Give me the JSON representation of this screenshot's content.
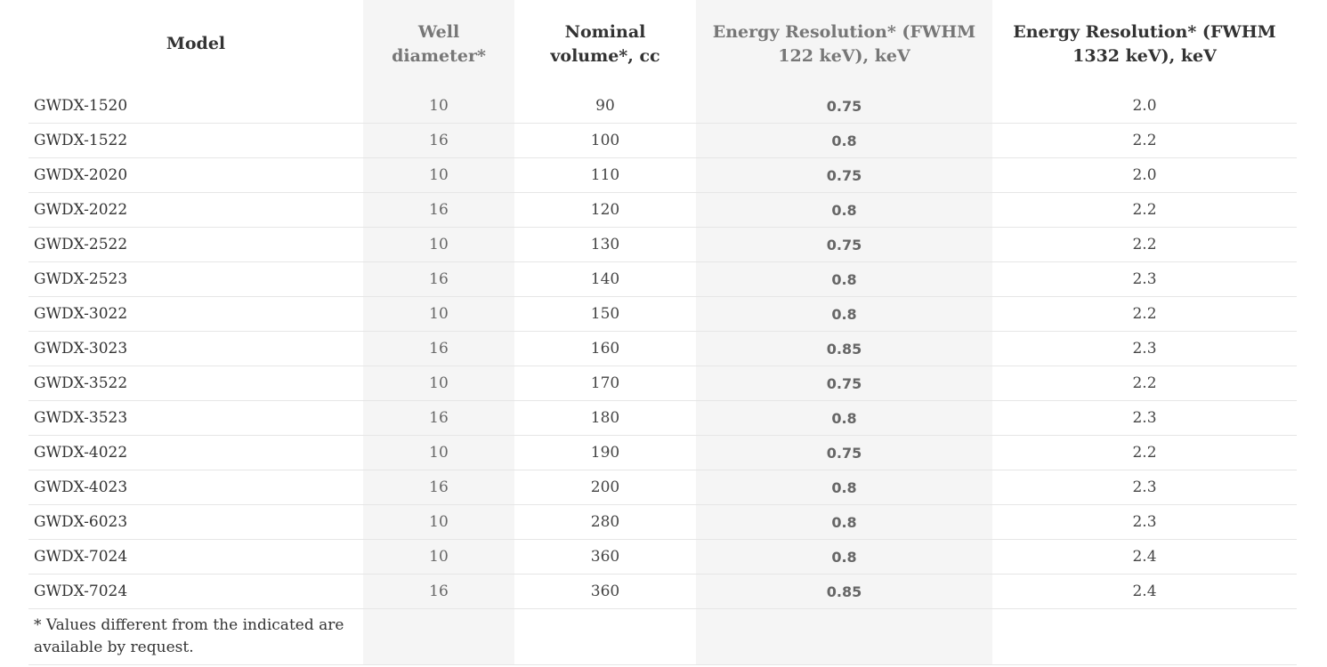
{
  "headers": {
    "model": "Model",
    "well": "Well diameter*",
    "volume": "Nominal volume*, cc",
    "e122": "Energy Resolution* (FWHM 122 keV), keV",
    "e1332": "Energy Resolution* (FWHM 1332 keV), keV"
  },
  "rows": [
    {
      "model": "GWDX-1520",
      "well": "10",
      "volume": "90",
      "e122": "0.75",
      "e1332": "2.0"
    },
    {
      "model": "GWDX-1522",
      "well": "16",
      "volume": "100",
      "e122": "0.8",
      "e1332": "2.2"
    },
    {
      "model": "GWDX-2020",
      "well": "10",
      "volume": "110",
      "e122": "0.75",
      "e1332": "2.0"
    },
    {
      "model": "GWDX-2022",
      "well": "16",
      "volume": "120",
      "e122": "0.8",
      "e1332": "2.2"
    },
    {
      "model": "GWDX-2522",
      "well": "10",
      "volume": "130",
      "e122": "0.75",
      "e1332": "2.2"
    },
    {
      "model": "GWDX-2523",
      "well": "16",
      "volume": "140",
      "e122": "0.8",
      "e1332": "2.3"
    },
    {
      "model": "GWDX-3022",
      "well": "10",
      "volume": "150",
      "e122": "0.8",
      "e1332": "2.2"
    },
    {
      "model": "GWDX-3023",
      "well": "16",
      "volume": "160",
      "e122": "0.85",
      "e1332": "2.3"
    },
    {
      "model": "GWDX-3522",
      "well": "10",
      "volume": "170",
      "e122": "0.75",
      "e1332": "2.2"
    },
    {
      "model": "GWDX-3523",
      "well": "16",
      "volume": "180",
      "e122": "0.8",
      "e1332": "2.3"
    },
    {
      "model": "GWDX-4022",
      "well": "10",
      "volume": "190",
      "e122": "0.75",
      "e1332": "2.2"
    },
    {
      "model": "GWDX-4023",
      "well": "16",
      "volume": "200",
      "e122": "0.8",
      "e1332": "2.3"
    },
    {
      "model": "GWDX-6023",
      "well": "10",
      "volume": "280",
      "e122": "0.8",
      "e1332": "2.3"
    },
    {
      "model": "GWDX-7024",
      "well": "10",
      "volume": "360",
      "e122": "0.8",
      "e1332": "2.4"
    },
    {
      "model": "GWDX-7024",
      "well": "16",
      "volume": "360",
      "e122": "0.85",
      "e1332": "2.4"
    }
  ],
  "footnote": "* Values different from the indicated are available by request."
}
